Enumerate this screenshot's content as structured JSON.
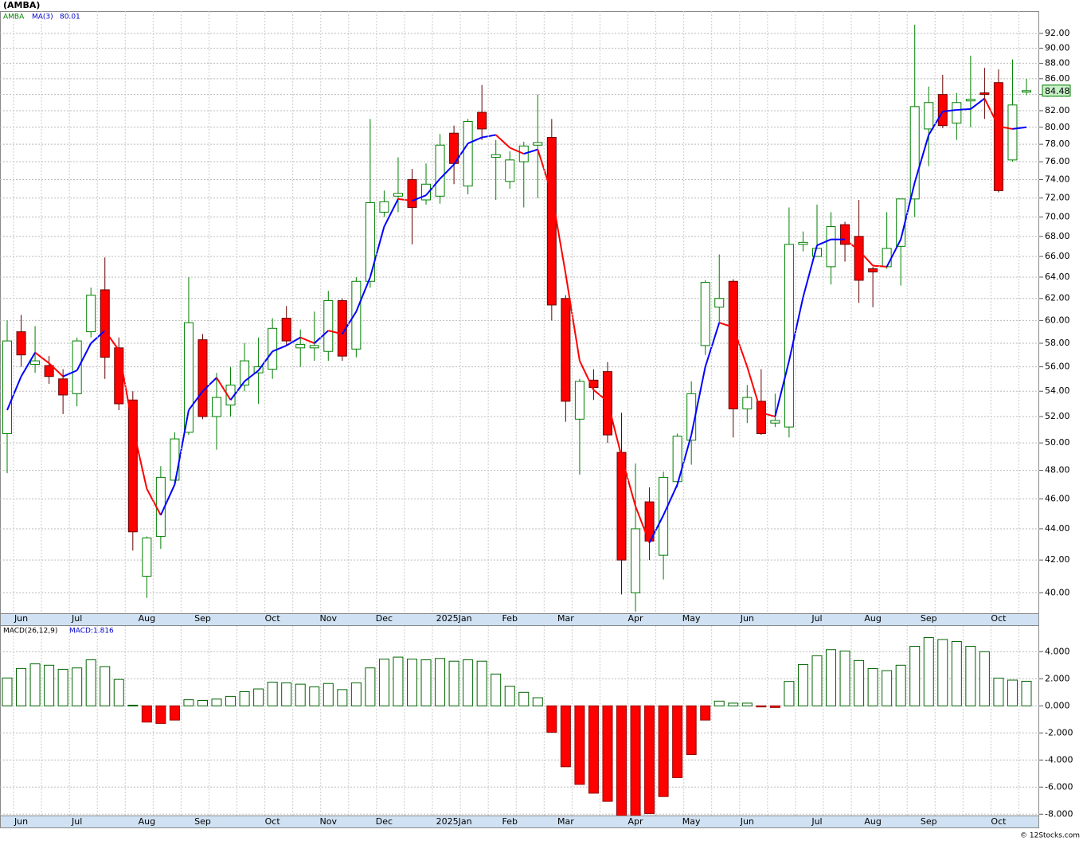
{
  "title": "(AMBA)",
  "footer": "© 12Stocks.com",
  "chart_data": [
    {
      "type": "candlestick",
      "log_scale": true,
      "grid": true,
      "categories": [
        null,
        "Jun",
        null,
        null,
        null,
        "Jul",
        null,
        null,
        null,
        null,
        "Aug",
        null,
        null,
        null,
        "Sep",
        null,
        null,
        null,
        null,
        "Oct",
        null,
        null,
        null,
        "Nov",
        null,
        null,
        null,
        "Dec",
        null,
        null,
        null,
        null,
        "2025Jan",
        null,
        null,
        null,
        "Feb",
        null,
        null,
        null,
        "Mar",
        null,
        null,
        null,
        null,
        "Apr",
        null,
        null,
        null,
        "May",
        null,
        null,
        null,
        "Jun",
        null,
        null,
        null,
        null,
        "Jul",
        null,
        null,
        null,
        "Aug",
        null,
        null,
        null,
        "Sep",
        null,
        null,
        null,
        null,
        "Oct",
        null,
        null
      ],
      "series": [
        {
          "name": "AMBA",
          "up_color": "#008000",
          "down_color": "#ff0000",
          "open": [
            50.7,
            59,
            56.2,
            56.1,
            55,
            53.8,
            59,
            62.8,
            57.6,
            53.3,
            41,
            43.5,
            47.3,
            50.8,
            58.3,
            52,
            52.9,
            54.5,
            55.5,
            55.8,
            60.2,
            57.6,
            57.6,
            57.3,
            61.8,
            57.5,
            63.6,
            70.5,
            72.2,
            74,
            71.8,
            72.2,
            79.3,
            73.3,
            81.8,
            76.5,
            73.8,
            76,
            77.9,
            78.8,
            62,
            51.8,
            54.9,
            55.6,
            49.3,
            40,
            45.8,
            42.3,
            47.2,
            50.2,
            57.8,
            61.2,
            63.6,
            52.6,
            53.2,
            51.5,
            51.2,
            67.2,
            66,
            65,
            69.2,
            68,
            64.8,
            65,
            67,
            71.9,
            79.8,
            84,
            80.5,
            83.2,
            84.2,
            85.5,
            76.2,
            84.3
          ],
          "high": [
            60,
            60.5,
            59.5,
            56.9,
            55.8,
            58.5,
            63,
            65.9,
            58.5,
            54,
            43.5,
            48.3,
            50.8,
            64,
            58.8,
            55.5,
            56,
            58,
            58.5,
            60.2,
            61.3,
            59.2,
            60.8,
            62.7,
            62,
            64,
            81,
            72.8,
            76.5,
            75.2,
            75.8,
            79.2,
            80.2,
            81,
            85.2,
            78.5,
            77.2,
            78.3,
            84,
            81,
            62.3,
            55,
            55.8,
            56.4,
            52.3,
            48.5,
            46.8,
            47.9,
            50.7,
            54.8,
            63.7,
            66.2,
            63.8,
            54.5,
            55.8,
            53.8,
            71,
            68.5,
            71.3,
            70.5,
            69.5,
            71.8,
            65,
            70.5,
            71.9,
            93.2,
            85,
            86.5,
            84.2,
            89,
            87.4,
            87.2,
            88.5,
            86
          ],
          "low": [
            47.8,
            56,
            55.5,
            54.6,
            52.2,
            52.8,
            58.5,
            55,
            52.5,
            42.6,
            39.7,
            42.7,
            47,
            50.6,
            51.8,
            49.5,
            52,
            54,
            53,
            55,
            57.8,
            56,
            56.5,
            56.5,
            56.5,
            56.8,
            63,
            70,
            70.5,
            67.2,
            71.3,
            71.4,
            73.5,
            72.4,
            78.5,
            71.8,
            73,
            71,
            72,
            60,
            51.6,
            47.7,
            53.3,
            50,
            39.9,
            38.9,
            42,
            40.8,
            46.8,
            48.4,
            57,
            59.8,
            50.4,
            51.5,
            50.6,
            51.2,
            50.4,
            66.5,
            66,
            63.3,
            65.5,
            61.6,
            61.2,
            64.8,
            63.2,
            70,
            75.5,
            79.9,
            78.5,
            80,
            81,
            72.6,
            76,
            83.9
          ],
          "close": [
            58.2,
            57,
            56.5,
            55.2,
            53.7,
            58.2,
            62.3,
            56.8,
            53,
            43.8,
            43.4,
            47.5,
            50.3,
            59.8,
            52,
            53.5,
            54.5,
            56.5,
            56,
            59.3,
            58.2,
            57.9,
            57.8,
            61.8,
            56.9,
            63.6,
            71.5,
            71.6,
            72.5,
            71,
            73.5,
            77.9,
            75.8,
            80.7,
            79.8,
            76.8,
            76.2,
            77.8,
            78.2,
            61.4,
            53.2,
            54.8,
            54.3,
            50.6,
            42,
            44,
            43.2,
            47.5,
            50.5,
            53.8,
            63.5,
            62,
            52.6,
            53.5,
            50.7,
            51.7,
            67.2,
            67.4,
            66.8,
            69,
            67.2,
            63.7,
            64.5,
            66.8,
            71.9,
            82.5,
            83,
            80.2,
            83,
            83.4,
            84,
            72.8,
            82.7,
            84.48
          ]
        },
        {
          "name": "MA(3)",
          "up_color": "#0000ff",
          "down_color": "#ff0000",
          "values": [
            52.5,
            55.2,
            57.2,
            56.3,
            55.2,
            55.7,
            58,
            59.1,
            57.4,
            51.2,
            46.7,
            44.9,
            47,
            52.5,
            54,
            55.1,
            53.3,
            54.8,
            55.7,
            57.3,
            57.8,
            58.5,
            58,
            59.1,
            58.8,
            60.8,
            64,
            69,
            71.9,
            71.7,
            72.3,
            74.1,
            75.7,
            78.1,
            78.8,
            79.1,
            77.6,
            76.9,
            77.4,
            72.5,
            64.3,
            56.5,
            54.1,
            53.2,
            49,
            45.5,
            43.1,
            44.9,
            47,
            50.6,
            56,
            59.8,
            59.4,
            56,
            52.3,
            52,
            56.5,
            62.1,
            67.1,
            67.7,
            67.7,
            66.6,
            65.1,
            65,
            67.7,
            73.7,
            79.1,
            81.9,
            82.1,
            82.2,
            83.5,
            80.1,
            79.8,
            80.01
          ]
        }
      ],
      "ylim": [
        38.8,
        95.1
      ],
      "yticks": [
        {
          "value": 40,
          "label": "40.00"
        },
        {
          "value": 42,
          "label": "42.00"
        },
        {
          "value": 44,
          "label": "44.00"
        },
        {
          "value": 46,
          "label": "46.00"
        },
        {
          "value": 48,
          "label": "48.00"
        },
        {
          "value": 50,
          "label": "50.00"
        },
        {
          "value": 52,
          "label": "52.00"
        },
        {
          "value": 54,
          "label": "54.00"
        },
        {
          "value": 56,
          "label": "56.00"
        },
        {
          "value": 58,
          "label": "58.00"
        },
        {
          "value": 60,
          "label": "60.00"
        },
        {
          "value": 62,
          "label": "62.00"
        },
        {
          "value": 64,
          "label": "64.00"
        },
        {
          "value": 66,
          "label": "66.00"
        },
        {
          "value": 68,
          "label": "68.00"
        },
        {
          "value": 70,
          "label": "70.00"
        },
        {
          "value": 72,
          "label": "72.00"
        },
        {
          "value": 74,
          "label": "74.00"
        },
        {
          "value": 76,
          "label": "76.00"
        },
        {
          "value": 78,
          "label": "78.00"
        },
        {
          "value": 80,
          "label": "80.00"
        },
        {
          "value": 82,
          "label": "82.00"
        },
        {
          "value": 84,
          "label": "84.00"
        },
        {
          "value": 86,
          "label": "86.00"
        },
        {
          "value": 88,
          "label": "88.00"
        },
        {
          "value": 90,
          "label": "90.00"
        },
        {
          "value": 92,
          "label": "92.00"
        }
      ]
    },
    {
      "type": "histogram_bars",
      "grid": true,
      "name": "MACD(26,12,9)",
      "last_label": "MACD:1.816",
      "up_color": "#006400",
      "down_color": "#ff0000",
      "values": [
        2.06,
        2.76,
        3.1,
        3.0,
        2.7,
        2.8,
        3.4,
        2.9,
        1.95,
        0.05,
        -1.2,
        -1.3,
        -1.05,
        0.45,
        0.4,
        0.5,
        0.7,
        1.05,
        1.25,
        1.75,
        1.7,
        1.6,
        1.4,
        1.65,
        1.2,
        1.7,
        2.8,
        3.45,
        3.6,
        3.45,
        3.4,
        3.5,
        3.3,
        3.4,
        3.3,
        2.35,
        1.45,
        1.0,
        0.6,
        -1.95,
        -4.5,
        -5.8,
        -6.45,
        -7.05,
        -8.3,
        -8.4,
        -7.95,
        -6.7,
        -5.3,
        -3.6,
        -1.05,
        0.35,
        0.2,
        0.2,
        -0.08,
        -0.12,
        1.8,
        3.05,
        3.7,
        4.15,
        4.05,
        3.35,
        2.75,
        2.6,
        3.0,
        4.4,
        5.05,
        4.9,
        4.75,
        4.4,
        4.0,
        2.05,
        1.9,
        1.816
      ],
      "ylim": [
        -8.1,
        5.9
      ],
      "yticks": [
        {
          "value": -8,
          "label": "-8.000"
        },
        {
          "value": -6,
          "label": "-6.000"
        },
        {
          "value": -4,
          "label": "-4.000"
        },
        {
          "value": -2,
          "label": "-2.000"
        },
        {
          "value": 0,
          "label": "0.000"
        },
        {
          "value": 2,
          "label": "2.000"
        },
        {
          "value": 4,
          "label": "4.000"
        }
      ]
    }
  ]
}
